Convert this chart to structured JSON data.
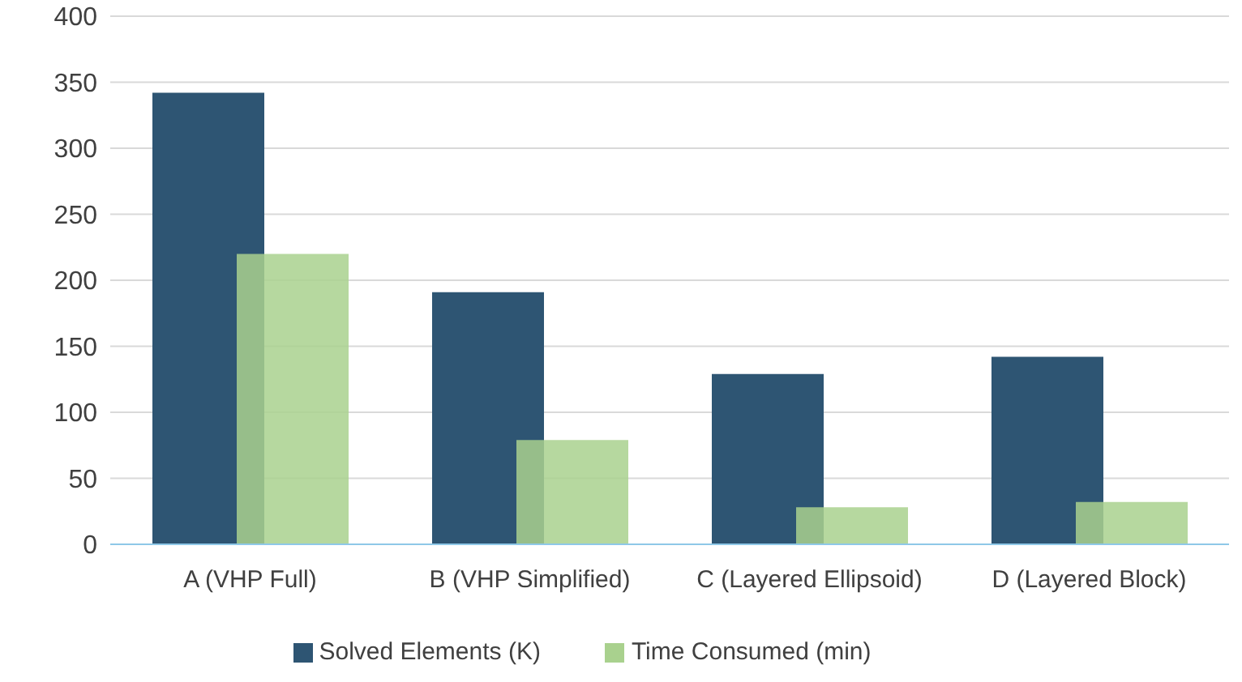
{
  "chart_data": {
    "type": "bar",
    "categories": [
      "A (VHP Full)",
      "B (VHP Simplified)",
      "C (Layered Ellipsoid)",
      "D (Layered Block)"
    ],
    "series": [
      {
        "name": "Solved Elements (K)",
        "color": "#2e5573",
        "values": [
          342,
          191,
          129,
          142
        ]
      },
      {
        "name": "Time Consumed (min)",
        "color": "#a9d18e",
        "values": [
          220,
          79,
          28,
          32
        ]
      }
    ],
    "ylim": [
      0,
      400
    ],
    "yticks": [
      0,
      50,
      100,
      150,
      200,
      250,
      300,
      350,
      400
    ],
    "grid": "y",
    "legend": "bottom"
  }
}
